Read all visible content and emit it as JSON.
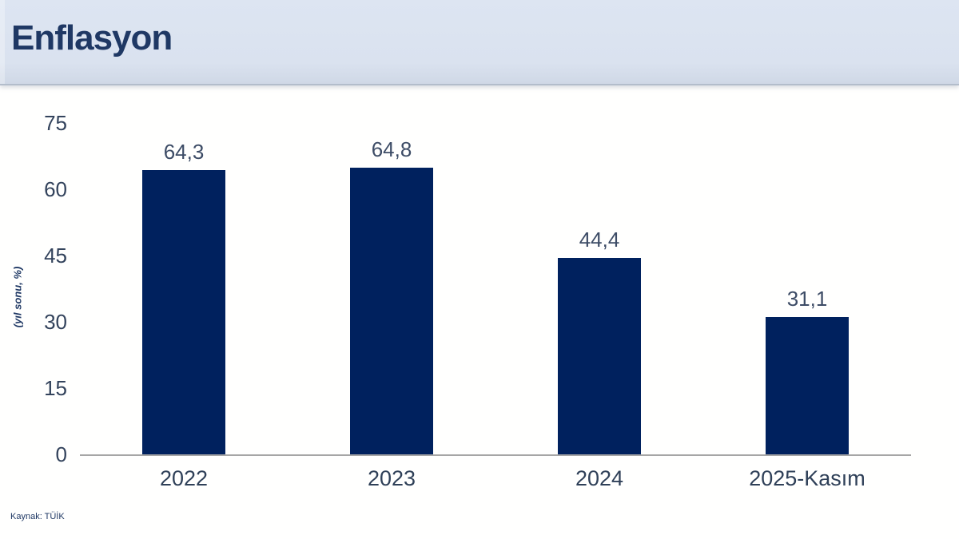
{
  "header": {
    "title": "Enflasyon"
  },
  "footer": {
    "source": "Kaynak: TÜİK"
  },
  "colors": {
    "bar": "#00215e",
    "header_bg": "#dae2ef",
    "title_text": "#1f3864",
    "axis_line": "#a6a6a6",
    "tick_label": "#33435c",
    "value_label": "#3d4c66"
  },
  "chart_data": {
    "type": "bar",
    "title": "Enflasyon",
    "categories": [
      "2022",
      "2023",
      "2024",
      "2025-Kasım"
    ],
    "values": [
      64.3,
      64.8,
      44.4,
      31.1
    ],
    "value_labels": [
      "64,3",
      "64,8",
      "44,4",
      "31,1"
    ],
    "xlabel": "",
    "ylabel": "(yıl sonu, %)",
    "ylim": [
      0,
      75
    ],
    "yticks": [
      0,
      15,
      30,
      45,
      60,
      75
    ],
    "grid": false,
    "legend": false,
    "source": "Kaynak: TÜİK"
  }
}
